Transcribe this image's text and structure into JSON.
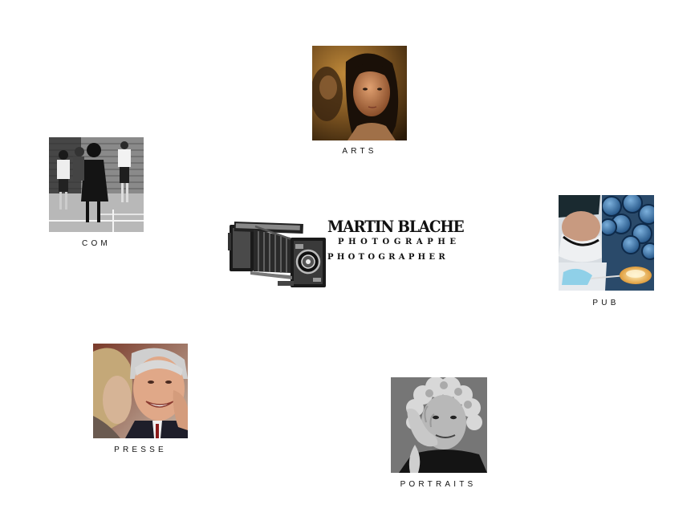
{
  "brand": {
    "name": "MARTIN BLACHE",
    "subtitle_fr": "PHOTOGRAPHE",
    "subtitle_en": "PHOTOGRAPHER"
  },
  "sections": {
    "arts": "ARTS",
    "com": "COM",
    "pub": "PUB",
    "presse": "PRESSE",
    "portraits": "PORTRAITS"
  },
  "icons": {
    "logo": "vintage-folding-camera-icon",
    "arts": "woman-portrait-photo",
    "com": "children-playground-photo",
    "pub": "lab-technician-photo",
    "presse": "politician-embrace-photo",
    "portraits": "woman-hand-face-photo"
  },
  "colors": {
    "background": "#ffffff",
    "text": "#111111"
  }
}
